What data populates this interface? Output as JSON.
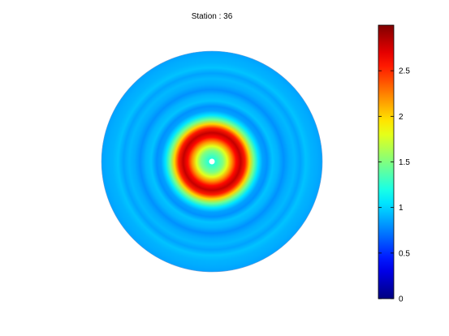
{
  "chart_data": {
    "type": "heatmap",
    "title": "Station : 36",
    "plot": "polar-disc",
    "colormap": "jet",
    "clim": [
      0,
      3
    ],
    "colorbar": {
      "placement": "right",
      "ticks": [
        0,
        0.5,
        1,
        1.5,
        2,
        2.5
      ],
      "tick_labels": [
        "0",
        "0.5",
        "1",
        "1.5",
        "2",
        "2.5"
      ]
    },
    "radial_profile": {
      "r": [
        0.0,
        0.03,
        0.06,
        0.1,
        0.14,
        0.18,
        0.22,
        0.26,
        0.3,
        0.34,
        0.38,
        0.42,
        0.46,
        0.5,
        0.55,
        0.6,
        0.65,
        0.7,
        0.75,
        0.8,
        0.85,
        0.9,
        0.95,
        1.0
      ],
      "value": [
        1.2,
        1.25,
        1.35,
        1.5,
        1.8,
        2.2,
        2.6,
        2.8,
        2.55,
        2.0,
        1.45,
        1.05,
        0.85,
        0.8,
        0.95,
        0.9,
        0.8,
        0.88,
        0.92,
        0.85,
        0.95,
        0.9,
        0.88,
        0.85
      ]
    },
    "center_marker": "white dot at center"
  }
}
